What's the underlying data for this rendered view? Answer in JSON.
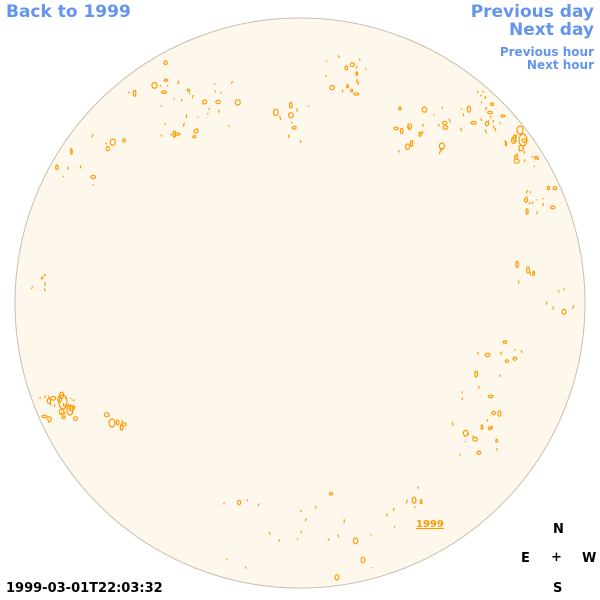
{
  "nav": {
    "back_label": "Back to 1999",
    "previous_day_label": "Previous day",
    "next_day_label": "Next day",
    "previous_hour_label": "Previous hour",
    "next_hour_label": "Next hour"
  },
  "map": {
    "year_label": "1999",
    "timestamp": "1999-03-01T22:03:32"
  },
  "compass": {
    "north": "N",
    "east": "E",
    "center": "+",
    "west": "W",
    "south": "S"
  },
  "colors": {
    "link": "#6495ed",
    "disk_fill": "#fef8ec",
    "disk_stroke": "#c9bfae",
    "feature": "#ff9900",
    "text": "#000000"
  }
}
